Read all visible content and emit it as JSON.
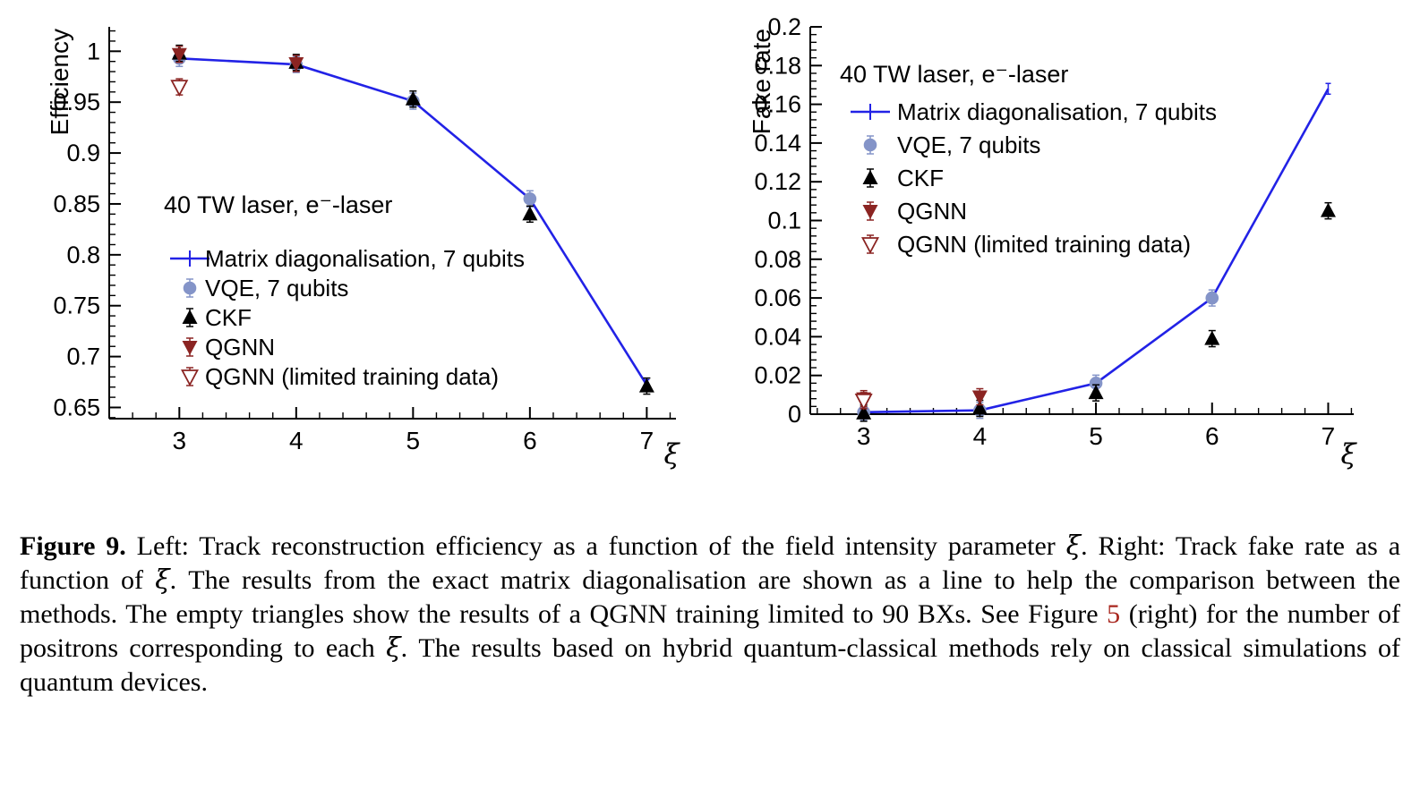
{
  "colors": {
    "line_blue": "#2222e6",
    "vqe_blue": "#8494c8",
    "ckf_black": "#000000",
    "qgnn_maroon": "#8b2422",
    "link_red": "#a8251d",
    "axis": "#000000"
  },
  "chart_data": [
    {
      "type": "line+scatter",
      "title": "",
      "xlabel": "ξ",
      "ylabel": "Efficiency",
      "xlim": [
        2.4,
        7.25
      ],
      "ylim": [
        0.639,
        1.024
      ],
      "xticks": [
        3,
        4,
        5,
        6,
        7
      ],
      "xtick_labels": [
        "3",
        "4",
        "5",
        "6",
        "7"
      ],
      "yticks": [
        0.65,
        0.7,
        0.75,
        0.8,
        0.85,
        0.9,
        0.95,
        1.0
      ],
      "ytick_labels": [
        "0.65",
        "0.7",
        "0.75",
        "0.8",
        "0.85",
        "0.9",
        "0.95",
        "1"
      ],
      "grid": false,
      "legend_position": "center-left",
      "legend_header": "40 TW laser, e⁻-laser",
      "series": [
        {
          "name": "Matrix diagonalisation, 7 qubits",
          "type": "line",
          "color": "#2222e6",
          "x": [
            3,
            4,
            5,
            6,
            7
          ],
          "y": [
            0.993,
            0.987,
            0.951,
            0.855,
            0.672
          ]
        },
        {
          "name": "VQE, 7 qubits",
          "type": "circle",
          "color": "#8494c8",
          "x": [
            3,
            4,
            5,
            6
          ],
          "y": [
            0.993,
            0.987,
            0.951,
            0.855
          ]
        },
        {
          "name": "CKF",
          "type": "triangle-up",
          "color": "#000000",
          "x": [
            3,
            4,
            5,
            6,
            7
          ],
          "y": [
            0.998,
            0.989,
            0.953,
            0.84,
            0.671
          ]
        },
        {
          "name": "QGNN",
          "type": "triangle-down",
          "color": "#8b2422",
          "x": [
            3,
            4
          ],
          "y": [
            0.997,
            0.988
          ]
        },
        {
          "name": "QGNN (limited training data)",
          "type": "triangle-down-open",
          "color": "#8b2422",
          "x": [
            3
          ],
          "y": [
            0.965
          ]
        }
      ]
    },
    {
      "type": "line+scatter",
      "title": "",
      "xlabel": "ξ",
      "ylabel": "Fake rate",
      "xlim": [
        2.54,
        7.22
      ],
      "ylim": [
        0,
        0.2
      ],
      "xticks": [
        3,
        4,
        5,
        6,
        7
      ],
      "xtick_labels": [
        "3",
        "4",
        "5",
        "6",
        "7"
      ],
      "yticks": [
        0,
        0.02,
        0.04,
        0.06,
        0.08,
        0.1,
        0.12,
        0.14,
        0.16,
        0.18,
        0.2
      ],
      "ytick_labels": [
        "0",
        "0.02",
        "0.04",
        "0.06",
        "0.08",
        "0.1",
        "0.12",
        "0.14",
        "0.16",
        "0.18",
        "0.2"
      ],
      "grid": false,
      "legend_position": "top-left",
      "legend_header": "40 TW laser, e⁻-laser",
      "series": [
        {
          "name": "Matrix diagonalisation, 7 qubits",
          "type": "line",
          "color": "#2222e6",
          "x": [
            3,
            4,
            5,
            6,
            7
          ],
          "y": [
            0.001,
            0.002,
            0.016,
            0.06,
            0.168
          ]
        },
        {
          "name": "VQE, 7 qubits",
          "type": "circle",
          "color": "#8494c8",
          "x": [
            3,
            4,
            5,
            6
          ],
          "y": [
            0.001,
            0.002,
            0.016,
            0.06
          ]
        },
        {
          "name": "CKF",
          "type": "triangle-up",
          "color": "#000000",
          "x": [
            3,
            4,
            5,
            6,
            7
          ],
          "y": [
            0.0005,
            0.003,
            0.011,
            0.039,
            0.105
          ]
        },
        {
          "name": "QGNN",
          "type": "triangle-down",
          "color": "#8b2422",
          "x": [
            3,
            4
          ],
          "y": [
            0.008,
            0.009
          ]
        },
        {
          "name": "QGNN (limited training data)",
          "type": "triangle-down-open",
          "color": "#8b2422",
          "x": [
            3
          ],
          "y": [
            0.007
          ]
        }
      ]
    }
  ],
  "caption": {
    "segments": [
      {
        "t": "Figure 9.",
        "bold": true
      },
      {
        "t": " Left: Track reconstruction efficiency as a function of the field intensity parameter "
      },
      {
        "t": "ξ",
        "italic": true
      },
      {
        "t": ". Right: Track fake rate as a function of "
      },
      {
        "t": "ξ",
        "italic": true
      },
      {
        "t": ". The results from the exact matrix diagonalisation are shown as a line to help the comparison between the methods. The empty triangles show the results of a QGNN training limited to 90 BXs. See Figure "
      },
      {
        "t": "5",
        "color": "#a8251d",
        "link": true
      },
      {
        "t": " (right) for the number of positrons corresponding to each "
      },
      {
        "t": "ξ",
        "italic": true
      },
      {
        "t": ". The results based on hybrid quantum-classical methods rely on classical simulations of quantum devices."
      }
    ]
  }
}
